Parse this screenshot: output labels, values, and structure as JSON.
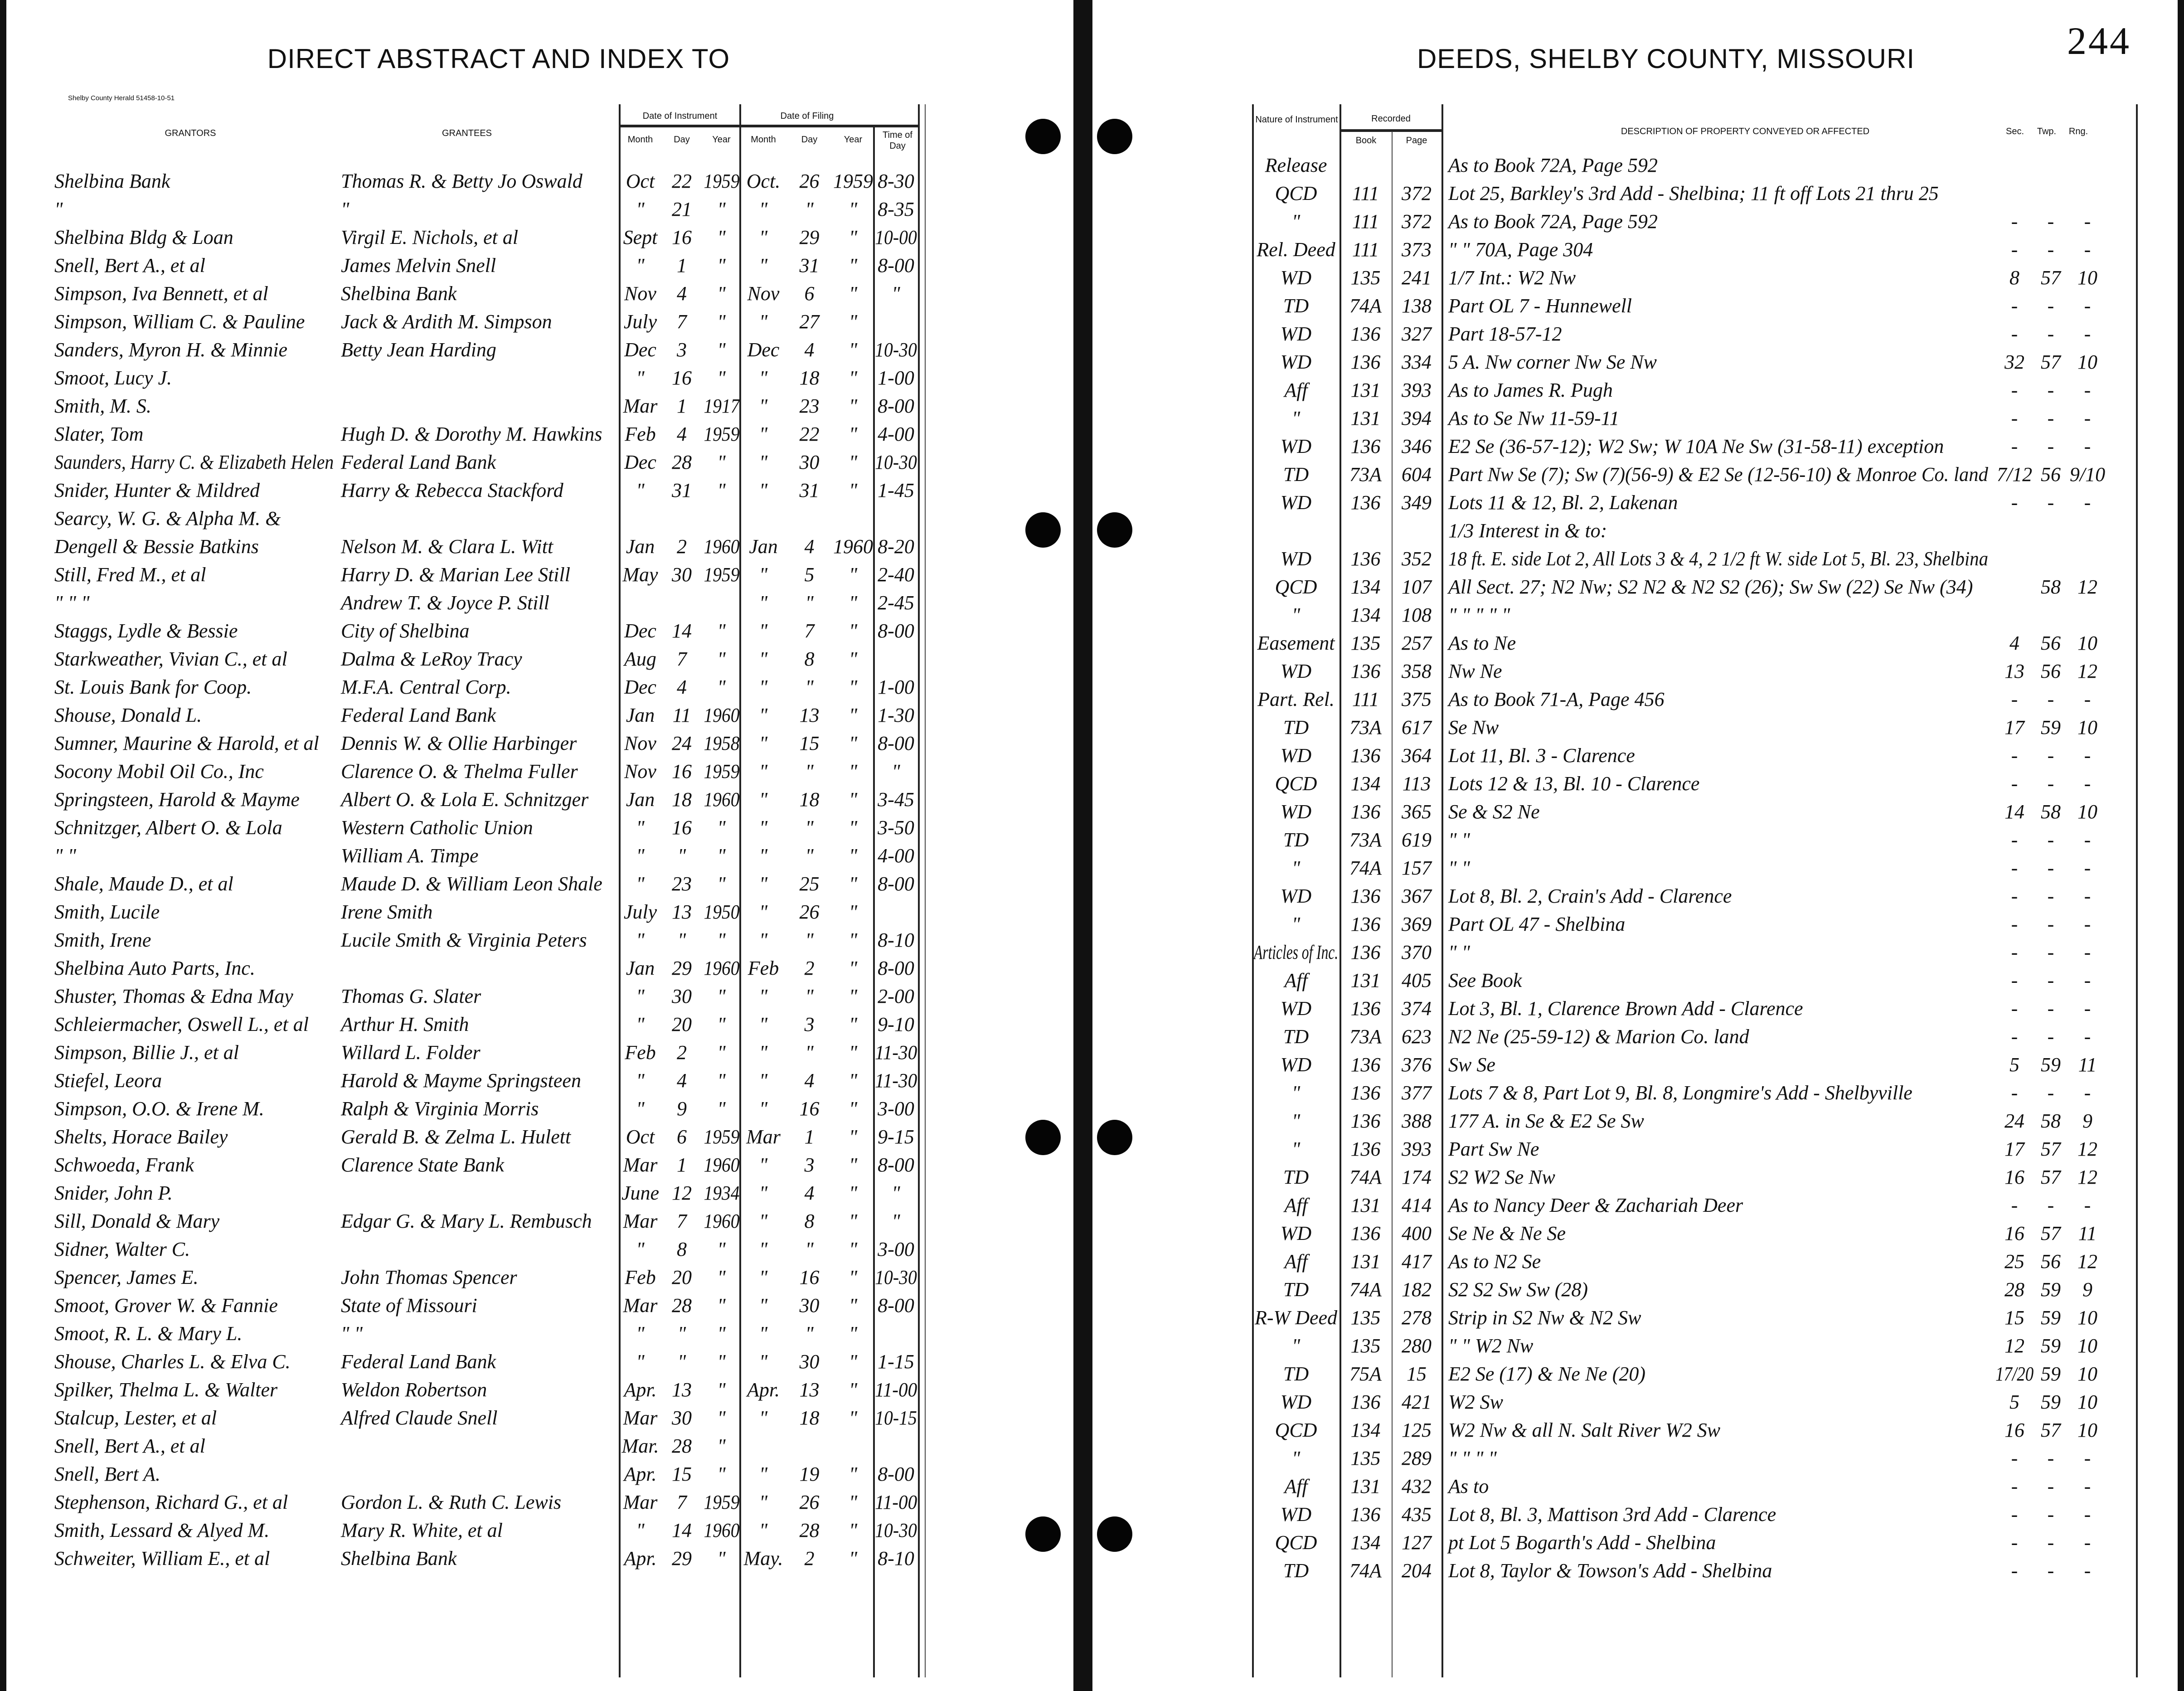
{
  "left_page": {
    "title": "DIRECT ABSTRACT AND INDEX TO",
    "printer_note": "Shelby County Herald 51458-10-51",
    "headers": {
      "grantors": "GRANTORS",
      "grantees": "GRANTEES",
      "date_of_instrument": "Date of Instrument",
      "date_of_filing": "Date of Filing",
      "month": "Month",
      "day": "Day",
      "year": "Year",
      "time_of_day": "Time of Day"
    },
    "rows": [
      [
        "Shelbina Bank",
        "Thomas R. & Betty Jo Oswald",
        "Oct",
        "22",
        "1959",
        "Oct.",
        "26",
        "1959",
        "8-30"
      ],
      [
        "\"",
        "\"",
        "\"",
        "21",
        "\"",
        "\"",
        "\"",
        "\"",
        "8-35"
      ],
      [
        "Shelbina Bldg & Loan",
        "Virgil E. Nichols, et al",
        "Sept",
        "16",
        "\"",
        "\"",
        "29",
        "\"",
        "10-00"
      ],
      [
        "Snell, Bert A., et al",
        "James Melvin Snell",
        "\"",
        "1",
        "\"",
        "\"",
        "31",
        "\"",
        "8-00"
      ],
      [
        "Simpson, Iva Bennett, et al",
        "Shelbina Bank",
        "Nov",
        "4",
        "\"",
        "Nov",
        "6",
        "\"",
        "\""
      ],
      [
        "Simpson, William C. & Pauline",
        "Jack & Ardith M. Simpson",
        "July",
        "7",
        "\"",
        "\"",
        "27",
        "\"",
        ""
      ],
      [
        "Sanders, Myron H. & Minnie",
        "Betty Jean Harding",
        "Dec",
        "3",
        "\"",
        "Dec",
        "4",
        "\"",
        "10-30"
      ],
      [
        "Smoot, Lucy J.",
        "",
        "\"",
        "16",
        "\"",
        "\"",
        "18",
        "\"",
        "1-00"
      ],
      [
        "Smith, M. S.",
        "",
        "Mar",
        "1",
        "1917",
        "\"",
        "23",
        "\"",
        "8-00"
      ],
      [
        "Slater, Tom",
        "Hugh D. & Dorothy M. Hawkins",
        "Feb",
        "4",
        "1959",
        "\"",
        "22",
        "\"",
        "4-00"
      ],
      [
        "Saunders, Harry C. & Elizabeth Helen",
        "Federal Land Bank",
        "Dec",
        "28",
        "\"",
        "\"",
        "30",
        "\"",
        "10-30"
      ],
      [
        "Snider, Hunter & Mildred",
        "Harry & Rebecca Stackford",
        "\"",
        "31",
        "\"",
        "\"",
        "31",
        "\"",
        "1-45"
      ],
      [
        "Searcy, W. G. & Alpha M. &",
        "",
        "",
        "",
        "",
        "",
        "",
        "",
        ""
      ],
      [
        "Dengell & Bessie Batkins",
        "Nelson M. & Clara L. Witt",
        "Jan",
        "2",
        "1960",
        "Jan",
        "4",
        "1960",
        "8-20"
      ],
      [
        "Still, Fred M., et al",
        "Harry D. & Marian Lee Still",
        "May",
        "30",
        "1959",
        "\"",
        "5",
        "\"",
        "2-40"
      ],
      [
        "\"   \"   \"",
        "Andrew T. & Joyce P. Still",
        "",
        "",
        "",
        "\"",
        "\"",
        "\"",
        "2-45"
      ],
      [
        "Staggs, Lydle & Bessie",
        "City of Shelbina",
        "Dec",
        "14",
        "\"",
        "\"",
        "7",
        "\"",
        "8-00"
      ],
      [
        "Starkweather, Vivian C., et al",
        "Dalma & LeRoy Tracy",
        "Aug",
        "7",
        "\"",
        "\"",
        "8",
        "\"",
        ""
      ],
      [
        "St. Louis Bank for Coop.",
        "M.F.A. Central Corp.",
        "Dec",
        "4",
        "\"",
        "\"",
        "\"",
        "\"",
        "1-00"
      ],
      [
        "Shouse, Donald L.",
        "Federal Land Bank",
        "Jan",
        "11",
        "1960",
        "\"",
        "13",
        "\"",
        "1-30"
      ],
      [
        "Sumner, Maurine & Harold, et al",
        "Dennis W. & Ollie Harbinger",
        "Nov",
        "24",
        "1958",
        "\"",
        "15",
        "\"",
        "8-00"
      ],
      [
        "Socony Mobil Oil Co., Inc",
        "Clarence O. & Thelma Fuller",
        "Nov",
        "16",
        "1959",
        "\"",
        "\"",
        "\"",
        "\""
      ],
      [
        "Springsteen, Harold & Mayme",
        "Albert O. & Lola E. Schnitzger",
        "Jan",
        "18",
        "1960",
        "\"",
        "18",
        "\"",
        "3-45"
      ],
      [
        "Schnitzger, Albert O. & Lola",
        "Western Catholic Union",
        "\"",
        "16",
        "\"",
        "\"",
        "\"",
        "\"",
        "3-50"
      ],
      [
        "\"   \"",
        "William A. Timpe",
        "\"",
        "\"",
        "\"",
        "\"",
        "\"",
        "\"",
        "4-00"
      ],
      [
        "Shale, Maude D., et al",
        "Maude D. & William Leon Shale",
        "\"",
        "23",
        "\"",
        "\"",
        "25",
        "\"",
        "8-00"
      ],
      [
        "Smith, Lucile",
        "Irene Smith",
        "July",
        "13",
        "1950",
        "\"",
        "26",
        "\"",
        ""
      ],
      [
        "Smith, Irene",
        "Lucile Smith & Virginia Peters",
        "\"",
        "\"",
        "\"",
        "\"",
        "\"",
        "\"",
        "8-10"
      ],
      [
        "Shelbina Auto Parts, Inc.",
        "",
        "Jan",
        "29",
        "1960",
        "Feb",
        "2",
        "\"",
        "8-00"
      ],
      [
        "Shuster, Thomas & Edna May",
        "Thomas G. Slater",
        "\"",
        "30",
        "\"",
        "\"",
        "\"",
        "\"",
        "2-00"
      ],
      [
        "Schleiermacher, Oswell L., et al",
        "Arthur H. Smith",
        "\"",
        "20",
        "\"",
        "\"",
        "3",
        "\"",
        "9-10"
      ],
      [
        "Simpson, Billie J., et al",
        "Willard L. Folder",
        "Feb",
        "2",
        "\"",
        "\"",
        "\"",
        "\"",
        "11-30"
      ],
      [
        "Stiefel, Leora",
        "Harold & Mayme Springsteen",
        "\"",
        "4",
        "\"",
        "\"",
        "4",
        "\"",
        "11-30"
      ],
      [
        "Simpson, O.O. & Irene M.",
        "Ralph & Virginia Morris",
        "\"",
        "9",
        "\"",
        "\"",
        "16",
        "\"",
        "3-00"
      ],
      [
        "Shelts, Horace Bailey",
        "Gerald B. & Zelma L. Hulett",
        "Oct",
        "6",
        "1959",
        "Mar",
        "1",
        "\"",
        "9-15"
      ],
      [
        "Schwoeda, Frank",
        "Clarence State Bank",
        "Mar",
        "1",
        "1960",
        "\"",
        "3",
        "\"",
        "8-00"
      ],
      [
        "Snider, John P.",
        "",
        "June",
        "12",
        "1934",
        "\"",
        "4",
        "\"",
        "\""
      ],
      [
        "Sill, Donald & Mary",
        "Edgar G. & Mary L. Rembusch",
        "Mar",
        "7",
        "1960",
        "\"",
        "8",
        "\"",
        "\""
      ],
      [
        "Sidner, Walter C.",
        "",
        "\"",
        "8",
        "\"",
        "\"",
        "\"",
        "\"",
        "3-00"
      ],
      [
        "Spencer, James E.",
        "John Thomas Spencer",
        "Feb",
        "20",
        "\"",
        "\"",
        "16",
        "\"",
        "10-30"
      ],
      [
        "Smoot, Grover W. & Fannie",
        "State of Missouri",
        "Mar",
        "28",
        "\"",
        "\"",
        "30",
        "\"",
        "8-00"
      ],
      [
        "Smoot, R. L. & Mary L.",
        "\"   \"",
        "\"",
        "\"",
        "\"",
        "\"",
        "\"",
        "\"",
        ""
      ],
      [
        "Shouse, Charles L. & Elva C.",
        "Federal Land Bank",
        "\"",
        "\"",
        "\"",
        "\"",
        "30",
        "\"",
        "1-15"
      ],
      [
        "Spilker, Thelma L. & Walter",
        "Weldon Robertson",
        "Apr.",
        "13",
        "\"",
        "Apr.",
        "13",
        "\"",
        "11-00"
      ],
      [
        "Stalcup, Lester, et al",
        "Alfred Claude Snell",
        "Mar",
        "30",
        "\"",
        "\"",
        "18",
        "\"",
        "10-15"
      ],
      [
        "Snell, Bert A., et al",
        "",
        "Mar.",
        "28",
        "\"",
        "",
        "",
        "",
        ""
      ],
      [
        "Snell, Bert A.",
        "",
        "Apr.",
        "15",
        "\"",
        "\"",
        "19",
        "\"",
        "8-00"
      ],
      [
        "Stephenson, Richard G., et al",
        "Gordon L. & Ruth C. Lewis",
        "Mar",
        "7",
        "1959",
        "\"",
        "26",
        "\"",
        "11-00"
      ],
      [
        "Smith, Lessard & Alyed M.",
        "Mary R. White, et al",
        "\"",
        "14",
        "1960",
        "\"",
        "28",
        "\"",
        "10-30"
      ],
      [
        "Schweiter, William E., et al",
        "Shelbina Bank",
        "Apr.",
        "29",
        "\"",
        "May.",
        "2",
        "\"",
        "8-10"
      ]
    ]
  },
  "right_page": {
    "title": "DEEDS, SHELBY COUNTY, MISSOURI",
    "page_number": "244",
    "headers": {
      "nature_of_instrument": "Nature of Instrument",
      "recorded": "Recorded",
      "book": "Book",
      "page": "Page",
      "description": "DESCRIPTION OF PROPERTY CONVEYED OR AFFECTED",
      "sec": "Sec.",
      "twp": "Twp.",
      "rng": "Rng."
    },
    "rows": [
      [
        "Release",
        "",
        "",
        "As to Book 72A, Page 592",
        "",
        "",
        ""
      ],
      [
        "QCD",
        "111",
        "372",
        "Lot 25, Barkley's 3rd Add - Shelbina; 11 ft off Lots 21 thru 25",
        "",
        "",
        ""
      ],
      [
        "\"",
        "111",
        "372",
        "As to Book 72A, Page 592",
        "-",
        "-",
        "-"
      ],
      [
        "Rel. Deed",
        "111",
        "373",
        "\"   \"   70A, Page 304",
        "-",
        "-",
        "-"
      ],
      [
        "WD",
        "135",
        "241",
        "1/7 Int.: W2 Nw",
        "8",
        "57",
        "10"
      ],
      [
        "TD",
        "74A",
        "138",
        "Part OL 7 - Hunnewell",
        "-",
        "-",
        "-"
      ],
      [
        "WD",
        "136",
        "327",
        "Part 18-57-12",
        "-",
        "-",
        "-"
      ],
      [
        "WD",
        "136",
        "334",
        "5 A. Nw corner Nw Se Nw",
        "32",
        "57",
        "10"
      ],
      [
        "Aff",
        "131",
        "393",
        "As to James R. Pugh",
        "-",
        "-",
        "-"
      ],
      [
        "\"",
        "131",
        "394",
        "As to Se Nw 11-59-11",
        "-",
        "-",
        "-"
      ],
      [
        "WD",
        "136",
        "346",
        "E2 Se (36-57-12); W2 Sw; W 10A Ne Sw (31-58-11) exception",
        "-",
        "-",
        "-"
      ],
      [
        "TD",
        "73A",
        "604",
        "Part Nw Se (7); Sw (7)(56-9) & E2 Se (12-56-10) & Monroe Co. land",
        "7/12",
        "56",
        "9/10"
      ],
      [
        "WD",
        "136",
        "349",
        "Lots 11 & 12, Bl. 2, Lakenan",
        "-",
        "-",
        "-"
      ],
      [
        "",
        "",
        "",
        "1/3 Interest in & to:",
        "",
        "",
        ""
      ],
      [
        "WD",
        "136",
        "352",
        "18 ft. E. side Lot 2, All Lots 3 & 4, 2 1/2 ft W. side Lot 5, Bl. 23, Shelbina",
        "",
        "",
        ""
      ],
      [
        "QCD",
        "134",
        "107",
        "All Sect. 27; N2 Nw; S2 N2 & N2 S2 (26); Sw Sw (22) Se Nw (34)",
        "",
        "58",
        "12"
      ],
      [
        "\"",
        "134",
        "108",
        "\"   \"   \"   \"   \"",
        "",
        "",
        ""
      ],
      [
        "Easement",
        "135",
        "257",
        "As to Ne",
        "4",
        "56",
        "10"
      ],
      [
        "WD",
        "136",
        "358",
        "Nw Ne",
        "13",
        "56",
        "12"
      ],
      [
        "Part. Rel.",
        "111",
        "375",
        "As to Book 71-A, Page 456",
        "-",
        "-",
        "-"
      ],
      [
        "TD",
        "73A",
        "617",
        "Se Nw",
        "17",
        "59",
        "10"
      ],
      [
        "WD",
        "136",
        "364",
        "Lot 11, Bl. 3 - Clarence",
        "-",
        "-",
        "-"
      ],
      [
        "QCD",
        "134",
        "113",
        "Lots 12 & 13, Bl. 10 - Clarence",
        "-",
        "-",
        "-"
      ],
      [
        "WD",
        "136",
        "365",
        "Se & S2 Ne",
        "14",
        "58",
        "10"
      ],
      [
        "TD",
        "73A",
        "619",
        "\"   \"",
        "-",
        "-",
        "-"
      ],
      [
        "\"",
        "74A",
        "157",
        "\"   \"",
        "-",
        "-",
        "-"
      ],
      [
        "WD",
        "136",
        "367",
        "Lot 8, Bl. 2, Crain's Add - Clarence",
        "-",
        "-",
        "-"
      ],
      [
        "\"",
        "136",
        "369",
        "Part OL 47 - Shelbina",
        "-",
        "-",
        "-"
      ],
      [
        "Articles of Inc.",
        "136",
        "370",
        "\"   \"",
        "-",
        "-",
        "-"
      ],
      [
        "Aff",
        "131",
        "405",
        "See Book",
        "-",
        "-",
        "-"
      ],
      [
        "WD",
        "136",
        "374",
        "Lot 3, Bl. 1, Clarence Brown Add - Clarence",
        "-",
        "-",
        "-"
      ],
      [
        "TD",
        "73A",
        "623",
        "N2 Ne (25-59-12) & Marion Co. land",
        "-",
        "-",
        "-"
      ],
      [
        "WD",
        "136",
        "376",
        "Sw Se",
        "5",
        "59",
        "11"
      ],
      [
        "\"",
        "136",
        "377",
        "Lots 7 & 8, Part Lot 9, Bl. 8, Longmire's Add - Shelbyville",
        "-",
        "-",
        "-"
      ],
      [
        "\"",
        "136",
        "388",
        "177 A. in Se & E2 Se Sw",
        "24",
        "58",
        "9"
      ],
      [
        "\"",
        "136",
        "393",
        "Part Sw Ne",
        "17",
        "57",
        "12"
      ],
      [
        "TD",
        "74A",
        "174",
        "S2 W2 Se Nw",
        "16",
        "57",
        "12"
      ],
      [
        "Aff",
        "131",
        "414",
        "As to Nancy Deer & Zachariah Deer",
        "-",
        "-",
        "-"
      ],
      [
        "WD",
        "136",
        "400",
        "Se Ne & Ne Se",
        "16",
        "57",
        "11"
      ],
      [
        "Aff",
        "131",
        "417",
        "As to N2 Se",
        "25",
        "56",
        "12"
      ],
      [
        "TD",
        "74A",
        "182",
        "S2 S2 Sw Sw (28)",
        "28",
        "59",
        "9"
      ],
      [
        "R-W Deed",
        "135",
        "278",
        "Strip in S2 Nw & N2 Sw",
        "15",
        "59",
        "10"
      ],
      [
        "\"",
        "135",
        "280",
        "\"   \"   W2 Nw",
        "12",
        "59",
        "10"
      ],
      [
        "TD",
        "75A",
        "15",
        "E2 Se (17) & Ne Ne (20)",
        "17/20",
        "59",
        "10"
      ],
      [
        "WD",
        "136",
        "421",
        "W2 Sw",
        "5",
        "59",
        "10"
      ],
      [
        "QCD",
        "134",
        "125",
        "W2 Nw & all N. Salt River W2 Sw",
        "16",
        "57",
        "10"
      ],
      [
        "\"",
        "135",
        "289",
        "\"   \"   \"   \"",
        "-",
        "-",
        "-"
      ],
      [
        "Aff",
        "131",
        "432",
        "As to",
        "-",
        "-",
        "-"
      ],
      [
        "WD",
        "136",
        "435",
        "Lot 8, Bl. 3, Mattison 3rd Add - Clarence",
        "-",
        "-",
        "-"
      ],
      [
        "QCD",
        "134",
        "127",
        "pt Lot 5 Bogarth's Add - Shelbina",
        "-",
        "-",
        "-"
      ],
      [
        "TD",
        "74A",
        "204",
        "Lot 8, Taylor & Towson's Add - Shelbina",
        "-",
        "-",
        "-"
      ]
    ]
  }
}
